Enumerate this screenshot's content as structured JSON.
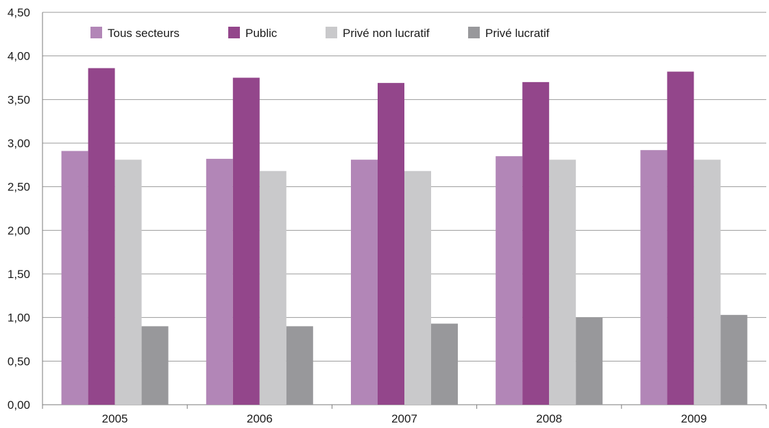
{
  "chart_data": {
    "type": "bar",
    "title": "",
    "xlabel": "",
    "ylabel": "",
    "categories": [
      "2005",
      "2006",
      "2007",
      "2008",
      "2009"
    ],
    "series": [
      {
        "name": "Tous secteurs",
        "color": "#b286b7",
        "values": [
          2.91,
          2.82,
          2.81,
          2.85,
          2.92
        ]
      },
      {
        "name": "Public",
        "color": "#93468b",
        "values": [
          3.86,
          3.75,
          3.69,
          3.7,
          3.82
        ]
      },
      {
        "name": "Privé non lucratif",
        "color": "#c9c9cb",
        "values": [
          2.81,
          2.68,
          2.68,
          2.81,
          2.81
        ]
      },
      {
        "name": "Privé lucratif",
        "color": "#98989b",
        "values": [
          0.9,
          0.9,
          0.93,
          1.0,
          1.03
        ]
      }
    ],
    "ylim": [
      0,
      4.5
    ],
    "yticks": [
      "0,00",
      "0,50",
      "1,00",
      "1,50",
      "2,00",
      "2,50",
      "3,00",
      "3,50",
      "4,00",
      "4,50"
    ],
    "grid": true,
    "legend_position": "top"
  }
}
